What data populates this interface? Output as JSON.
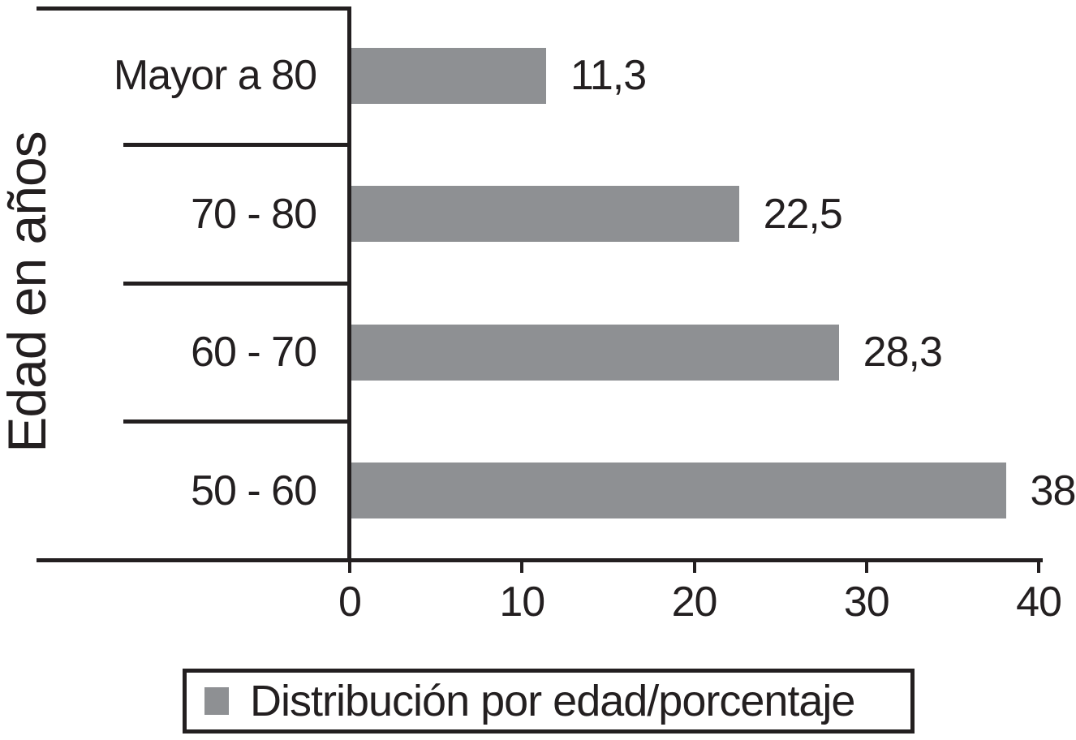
{
  "chart_data": {
    "type": "bar",
    "orientation": "horizontal",
    "title": "",
    "xlabel": "",
    "ylabel": "Edad en años",
    "categories": [
      "Mayor a 80",
      "70 - 80",
      "60 - 70",
      "50 - 60"
    ],
    "values": [
      11.3,
      22.5,
      28.3,
      38
    ],
    "value_labels": [
      "11,3",
      "22,5",
      "28,3",
      "38"
    ],
    "xlim": [
      0,
      40
    ],
    "x_ticks": [
      0,
      10,
      20,
      30,
      40
    ],
    "x_tick_labels": [
      "0",
      "10",
      "20",
      "30",
      "40"
    ],
    "grid": false,
    "legend_position": "bottom",
    "legend": [
      "Distribución por edad/porcentaje"
    ],
    "bar_color": "#8e9093",
    "axis_color": "#231f20",
    "background_color": "#ffffff"
  }
}
